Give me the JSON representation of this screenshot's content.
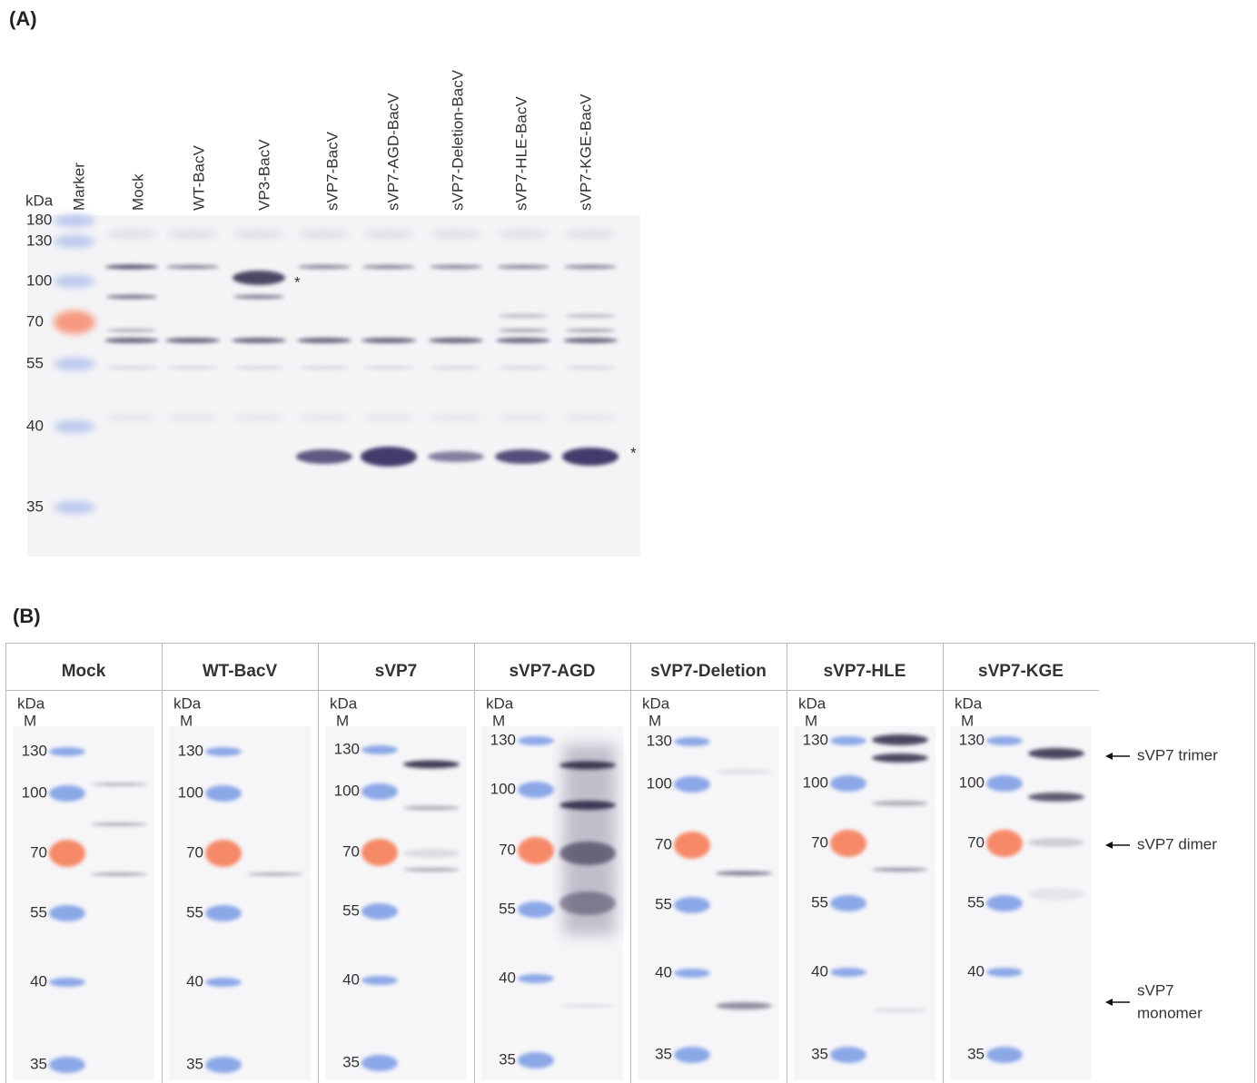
{
  "panel_a": {
    "label": "(A)",
    "unit": "kDa",
    "lanes": [
      "Marker",
      "Mock",
      "WT-BacV",
      "VP3-BacV",
      "sVP7-BacV",
      "sVP7-AGD-BacV",
      "sVP7-Deletion-BacV",
      "sVP7-HLE-BacV",
      "sVP7-KGE-BacV"
    ],
    "markers": [
      180,
      130,
      100,
      70,
      55,
      40,
      35
    ],
    "asterisks": [
      "*",
      "*"
    ]
  },
  "panel_b": {
    "label": "(B)",
    "columns": [
      {
        "title": "Mock",
        "unit": "kDa",
        "marker_lane": "M",
        "markers": [
          130,
          100,
          70,
          55,
          40,
          35
        ]
      },
      {
        "title": "WT-BacV",
        "unit": "kDa",
        "marker_lane": "M",
        "markers": [
          130,
          100,
          70,
          55,
          40,
          35
        ]
      },
      {
        "title": "sVP7",
        "unit": "kDa",
        "marker_lane": "M",
        "markers": [
          130,
          100,
          70,
          55,
          40,
          35
        ]
      },
      {
        "title": "sVP7-AGD",
        "unit": "kDa",
        "marker_lane": "M",
        "markers": [
          130,
          100,
          70,
          55,
          40,
          35
        ]
      },
      {
        "title": "sVP7-Deletion",
        "unit": "kDa",
        "marker_lane": "M",
        "markers": [
          130,
          100,
          70,
          55,
          40,
          35
        ]
      },
      {
        "title": "sVP7-HLE",
        "unit": "kDa",
        "marker_lane": "M",
        "markers": [
          130,
          100,
          70,
          55,
          40,
          35
        ]
      },
      {
        "title": "sVP7-KGE",
        "unit": "kDa",
        "marker_lane": "M",
        "markers": [
          130,
          100,
          70,
          55,
          40,
          35
        ]
      }
    ],
    "annotations": [
      {
        "lines": [
          "sVP7 trimer"
        ]
      },
      {
        "lines": [
          "sVP7 dimer"
        ]
      },
      {
        "lines": [
          "sVP7",
          "monomer"
        ]
      }
    ]
  }
}
